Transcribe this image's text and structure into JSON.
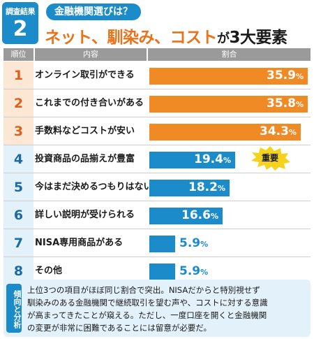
{
  "header": {
    "tag_line1": "調査結果",
    "tag_number": "2",
    "subtitle": "金融機関選びは？",
    "title_main": "ネット、馴染み、コスト",
    "title_ga": "が",
    "title_rest": "3大要素"
  },
  "columns": {
    "rank": "順位",
    "content": "内容",
    "ratio": "割合"
  },
  "badge": "重要",
  "colors": {
    "top": "#f08a24",
    "top_bg": "#fce7d5",
    "other": "#1b8bc9",
    "other_bg": "#e2f1fa",
    "other_text": "#1b6aa5"
  },
  "chart_data": {
    "type": "bar",
    "orientation": "horizontal",
    "xlim": [
      0,
      36
    ],
    "rows": [
      {
        "rank": "1",
        "label": "オンライン取引ができる",
        "value": 35.9,
        "value_text": "35.9",
        "unit": "%"
      },
      {
        "rank": "2",
        "label": "これまでの付き合いがある",
        "value": 35.8,
        "value_text": "35.8",
        "unit": "%"
      },
      {
        "rank": "3",
        "label": "手数料などコストが安い",
        "value": 34.3,
        "value_text": "34.3",
        "unit": "%"
      },
      {
        "rank": "4",
        "label": "投資商品の品揃えが豊富",
        "value": 19.4,
        "value_text": "19.4",
        "unit": "%"
      },
      {
        "rank": "5",
        "label": "今はまだ決めるつもりはない",
        "value": 18.2,
        "value_text": "18.2",
        "unit": "%"
      },
      {
        "rank": "6",
        "label": "詳しい説明が受けられる",
        "value": 16.6,
        "value_text": "16.6",
        "unit": "%"
      },
      {
        "rank": "7",
        "label": "NISA専用商品がある",
        "value": 5.9,
        "value_text": "5.9",
        "unit": "%"
      },
      {
        "rank": "8",
        "label": "その他",
        "value": 5.9,
        "value_text": "5.9",
        "unit": "%"
      }
    ]
  },
  "analysis": {
    "tag": "傾向と分析",
    "lines": [
      "上位3つの項目がほぼ同じ割合で突出。NISAだからと特別視せず",
      "馴染みのある金融機関で継続取引を望む声や、コストに対する意識",
      "が高まってきたことが窺える。ただし、一度口座を開くと金融機関",
      "の変更が非常に困難であることには留意が必要だ。"
    ]
  }
}
